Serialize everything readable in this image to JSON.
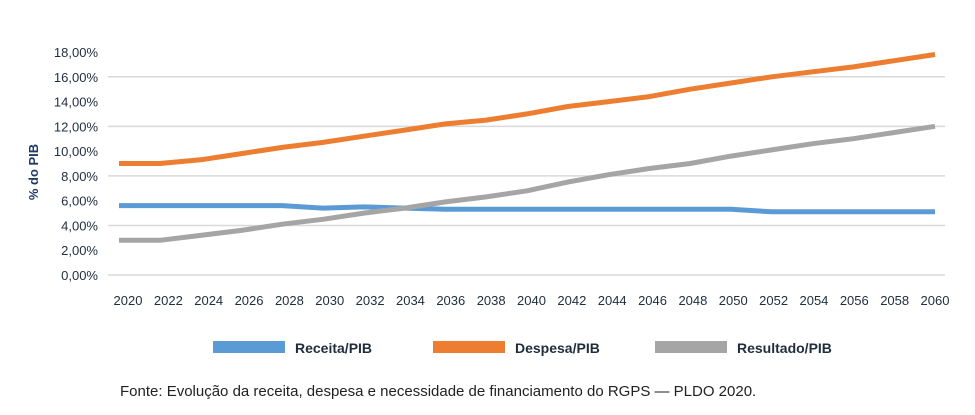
{
  "chart_data": {
    "type": "line",
    "title": "",
    "xlabel": "",
    "ylabel": "% do PIB",
    "ylim": [
      0,
      18
    ],
    "yticks": [
      0,
      2,
      4,
      6,
      8,
      10,
      12,
      14,
      16,
      18
    ],
    "ytick_labels": [
      "0,00%",
      "2,00%",
      "4,00%",
      "6,00%",
      "8,00%",
      "10,00%",
      "12,00%",
      "14,00%",
      "16,00%",
      "18,00%"
    ],
    "gridlines": [
      0,
      4,
      8,
      12,
      16
    ],
    "grid": true,
    "legend_position": "bottom",
    "categories": [
      "2020",
      "2022",
      "2024",
      "2026",
      "2028",
      "2030",
      "2032",
      "2034",
      "2036",
      "2038",
      "2040",
      "2042",
      "2044",
      "2046",
      "2048",
      "2050",
      "2052",
      "2054",
      "2056",
      "2058",
      "2060"
    ],
    "series": [
      {
        "name": "Receita/PIB",
        "color": "#5B9BD5",
        "values": [
          5.6,
          5.6,
          5.6,
          5.6,
          5.6,
          5.4,
          5.5,
          5.4,
          5.3,
          5.3,
          5.3,
          5.3,
          5.3,
          5.3,
          5.3,
          5.3,
          5.1,
          5.1,
          5.1,
          5.1,
          5.1
        ]
      },
      {
        "name": "Despesa/PIB",
        "color": "#ED7D31",
        "values": [
          9.0,
          9.0,
          9.3,
          9.8,
          10.3,
          10.7,
          11.2,
          11.7,
          12.2,
          12.5,
          13.0,
          13.6,
          14.0,
          14.4,
          15.0,
          15.5,
          16.0,
          16.4,
          16.8,
          17.3,
          17.8
        ]
      },
      {
        "name": "Resultado/PIB",
        "color": "#A5A5A5",
        "values": [
          2.8,
          2.8,
          3.2,
          3.6,
          4.1,
          4.5,
          5.0,
          5.4,
          5.9,
          6.3,
          6.8,
          7.5,
          8.1,
          8.6,
          9.0,
          9.6,
          10.1,
          10.6,
          11.0,
          11.5,
          12.0
        ]
      }
    ]
  },
  "caption": "Fonte: Evolução da receita, despesa e necessidade de financiamento do RGPS — PLDO 2020."
}
